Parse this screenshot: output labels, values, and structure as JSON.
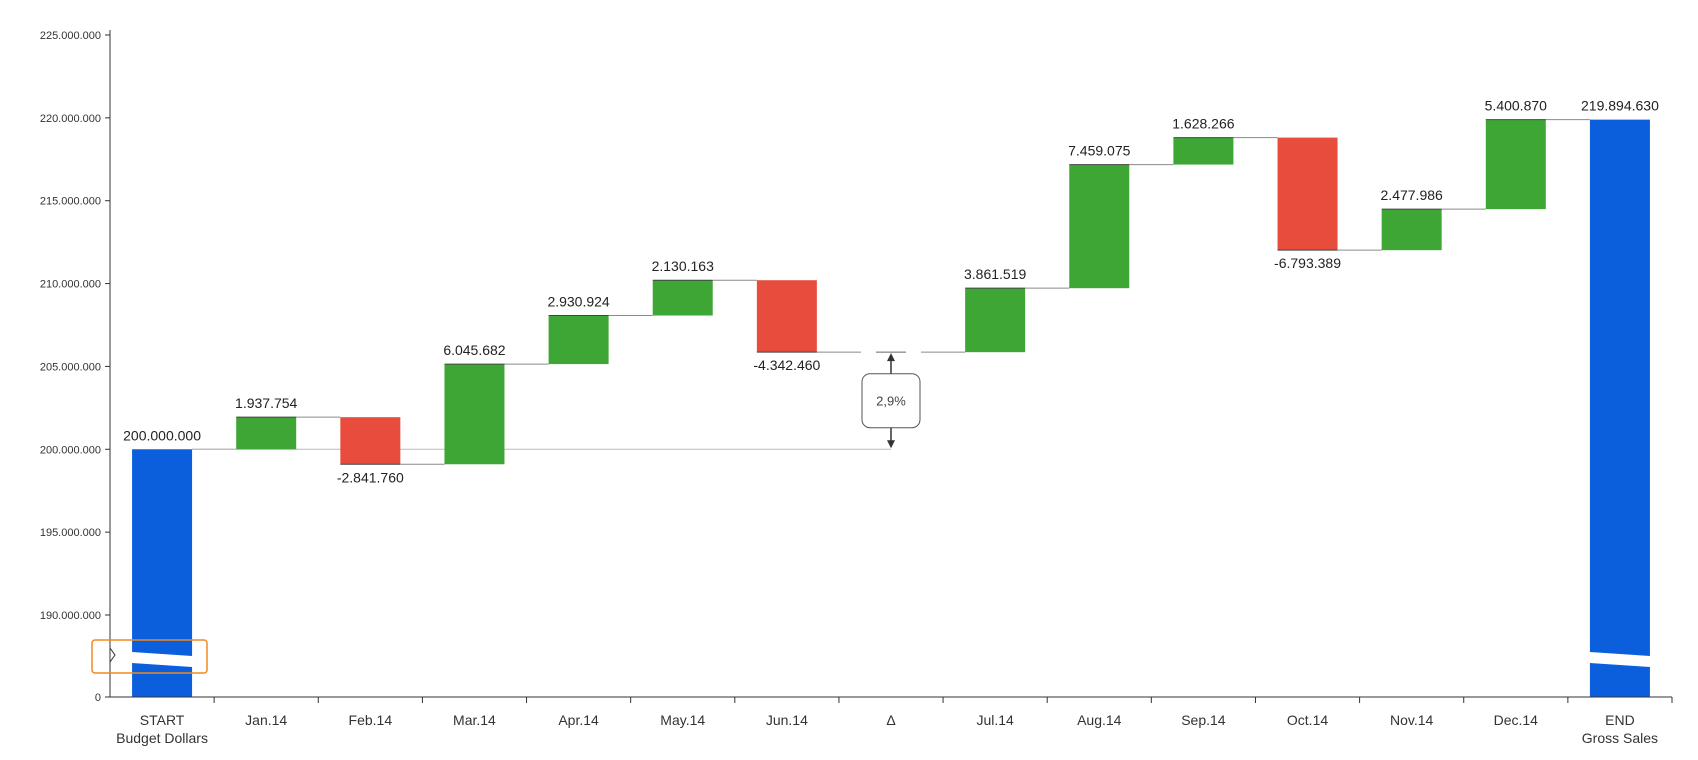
{
  "chart_data": {
    "type": "waterfall",
    "y_ticks": [
      {
        "value": 0,
        "label": "0"
      },
      {
        "value": 190000000,
        "label": "190.000.000"
      },
      {
        "value": 195000000,
        "label": "195.000.000"
      },
      {
        "value": 200000000,
        "label": "200.000.000"
      },
      {
        "value": 205000000,
        "label": "205.000.000"
      },
      {
        "value": 210000000,
        "label": "210.000.000"
      },
      {
        "value": 215000000,
        "label": "215.000.000"
      },
      {
        "value": 220000000,
        "label": "220.000.000"
      },
      {
        "value": 225000000,
        "label": "225.000.000"
      }
    ],
    "axis_break": {
      "shown": true,
      "between": [
        0,
        190000000
      ]
    },
    "ylim": [
      0,
      225000000
    ],
    "categories": [
      {
        "label": "START",
        "sublabel": "Budget Dollars",
        "kind": "total",
        "value": 200000000,
        "value_label": "200.000.000"
      },
      {
        "label": "Jan.14",
        "kind": "increase",
        "value": 1937754,
        "value_label": "1.937.754"
      },
      {
        "label": "Feb.14",
        "kind": "decrease",
        "value": -2841760,
        "value_label": "-2.841.760"
      },
      {
        "label": "Mar.14",
        "kind": "increase",
        "value": 6045682,
        "value_label": "6.045.682"
      },
      {
        "label": "Apr.14",
        "kind": "increase",
        "value": 2930924,
        "value_label": "2.930.924"
      },
      {
        "label": "May.14",
        "kind": "increase",
        "value": 2130163,
        "value_label": "2.130.163"
      },
      {
        "label": "Jun.14",
        "kind": "decrease",
        "value": -4342460,
        "value_label": "-4.342.460"
      },
      {
        "label": "Δ",
        "kind": "delta",
        "value_label": "2,9%"
      },
      {
        "label": "Jul.14",
        "kind": "increase",
        "value": 3861519,
        "value_label": "3.861.519"
      },
      {
        "label": "Aug.14",
        "kind": "increase",
        "value": 7459075,
        "value_label": "7.459.075"
      },
      {
        "label": "Sep.14",
        "kind": "increase",
        "value": 1628266,
        "value_label": "1.628.266"
      },
      {
        "label": "Oct.14",
        "kind": "decrease",
        "value": -6793389,
        "value_label": "-6.793.389"
      },
      {
        "label": "Nov.14",
        "kind": "increase",
        "value": 2477986,
        "value_label": "2.477.986"
      },
      {
        "label": "Dec.14",
        "kind": "increase",
        "value": 5400870,
        "value_label": "5.400.870"
      },
      {
        "label": "END",
        "sublabel": "Gross Sales",
        "kind": "total",
        "value": 219894630,
        "value_label": "219.894.630"
      }
    ],
    "colors": {
      "total": "#0b5fdc",
      "increase": "#3ea635",
      "decrease": "#e84c3d",
      "connector": "#8a8a8a",
      "axis": "#333333",
      "break_marker": "#ee8a22"
    },
    "grid": false,
    "legend": "none"
  }
}
